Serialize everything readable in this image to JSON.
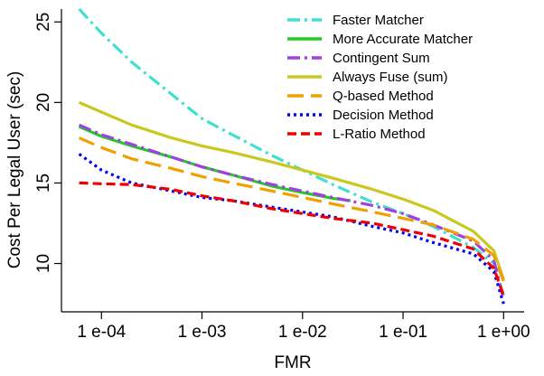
{
  "chart_data": {
    "type": "line",
    "title": "",
    "xlabel": "FMR",
    "ylabel": "Cost Per Legal User (sec)",
    "xscale": "log",
    "xlim": [
      4e-05,
      1.6
    ],
    "ylim": [
      7.0,
      25.8
    ],
    "xticks": [
      {
        "value": 0.0001,
        "label": "1   e-04"
      },
      {
        "value": 0.001,
        "label": "1   e-03"
      },
      {
        "value": 0.01,
        "label": "1   e-02"
      },
      {
        "value": 0.1,
        "label": "1   e-01"
      },
      {
        "value": 1,
        "label": "1   e+00"
      }
    ],
    "yticks": [
      {
        "value": 10,
        "label": "10"
      },
      {
        "value": 15,
        "label": "15"
      },
      {
        "value": 20,
        "label": "20"
      },
      {
        "value": 25,
        "label": "25"
      }
    ],
    "legend_position": "top-right",
    "grid": false,
    "series": [
      {
        "name": "Faster Matcher",
        "color": "#40e0d0",
        "dash": "14 5 3 5",
        "x": [
          6e-05,
          0.0001,
          0.0002,
          0.0005,
          0.001,
          0.002,
          0.005,
          0.01,
          0.02,
          0.05,
          0.1,
          0.2,
          0.5,
          0.8,
          1.0
        ],
        "y": [
          25.8,
          24.3,
          22.5,
          20.5,
          19.0,
          18.0,
          16.7,
          15.8,
          14.9,
          13.8,
          13.1,
          12.3,
          11.0,
          10.0,
          8.0
        ]
      },
      {
        "name": "More Accurate Matcher",
        "color": "#22cc22",
        "dash": "",
        "x": [
          6e-05,
          0.0001,
          0.0002,
          0.0005,
          0.001,
          0.002,
          0.005,
          0.01,
          0.02,
          0.03
        ],
        "y": [
          18.5,
          17.9,
          17.3,
          16.6,
          16.0,
          15.5,
          14.8,
          14.4,
          14.05,
          13.9
        ]
      },
      {
        "name": "Contingent Sum",
        "color": "#a040e0",
        "dash": "14 5 3 5",
        "x": [
          6e-05,
          0.0001,
          0.0002,
          0.0005,
          0.001,
          0.002,
          0.005,
          0.01,
          0.02,
          0.05,
          0.1,
          0.2,
          0.5,
          0.8,
          1.0
        ],
        "y": [
          18.6,
          18.0,
          17.4,
          16.6,
          16.0,
          15.5,
          14.9,
          14.5,
          14.1,
          13.6,
          13.1,
          12.4,
          11.4,
          10.2,
          7.8
        ]
      },
      {
        "name": "Always Fuse (sum)",
        "color": "#c8c820",
        "dash": "",
        "x": [
          6e-05,
          0.0001,
          0.0002,
          0.0005,
          0.001,
          0.002,
          0.005,
          0.01,
          0.02,
          0.05,
          0.1,
          0.2,
          0.5,
          0.8,
          1.0
        ],
        "y": [
          20.0,
          19.4,
          18.6,
          17.8,
          17.3,
          16.9,
          16.3,
          15.8,
          15.3,
          14.6,
          14.0,
          13.3,
          12.0,
          10.8,
          9.0
        ]
      },
      {
        "name": "Q-based Method",
        "color": "#f0a000",
        "dash": "18 8",
        "x": [
          6e-05,
          0.0001,
          0.0002,
          0.0005,
          0.001,
          0.002,
          0.005,
          0.01,
          0.02,
          0.05,
          0.1,
          0.2,
          0.5,
          0.8,
          1.0
        ],
        "y": [
          17.8,
          17.2,
          16.5,
          15.9,
          15.4,
          15.0,
          14.5,
          14.1,
          13.7,
          13.2,
          12.8,
          12.4,
          11.5,
          10.5,
          8.9
        ]
      },
      {
        "name": "Decision Method",
        "color": "#0000ee",
        "dash": "3 4",
        "x": [
          6e-05,
          0.0001,
          0.0002,
          0.0005,
          0.001,
          0.002,
          0.005,
          0.01,
          0.02,
          0.05,
          0.1,
          0.2,
          0.5,
          0.8,
          1.0
        ],
        "y": [
          16.8,
          15.8,
          15.0,
          14.5,
          14.1,
          13.9,
          13.5,
          13.2,
          12.9,
          12.3,
          11.9,
          11.3,
          10.6,
          9.5,
          7.5
        ]
      },
      {
        "name": "L-Ratio Method",
        "color": "#ee0000",
        "dash": "10 5",
        "x": [
          6e-05,
          0.0001,
          0.0002,
          0.0005,
          0.001,
          0.002,
          0.005,
          0.01,
          0.02,
          0.05,
          0.1,
          0.2,
          0.5,
          0.8,
          1.0
        ],
        "y": [
          15.0,
          14.95,
          14.9,
          14.6,
          14.2,
          13.9,
          13.4,
          13.1,
          12.8,
          12.5,
          12.1,
          11.7,
          10.9,
          9.7,
          8.0
        ]
      }
    ]
  }
}
